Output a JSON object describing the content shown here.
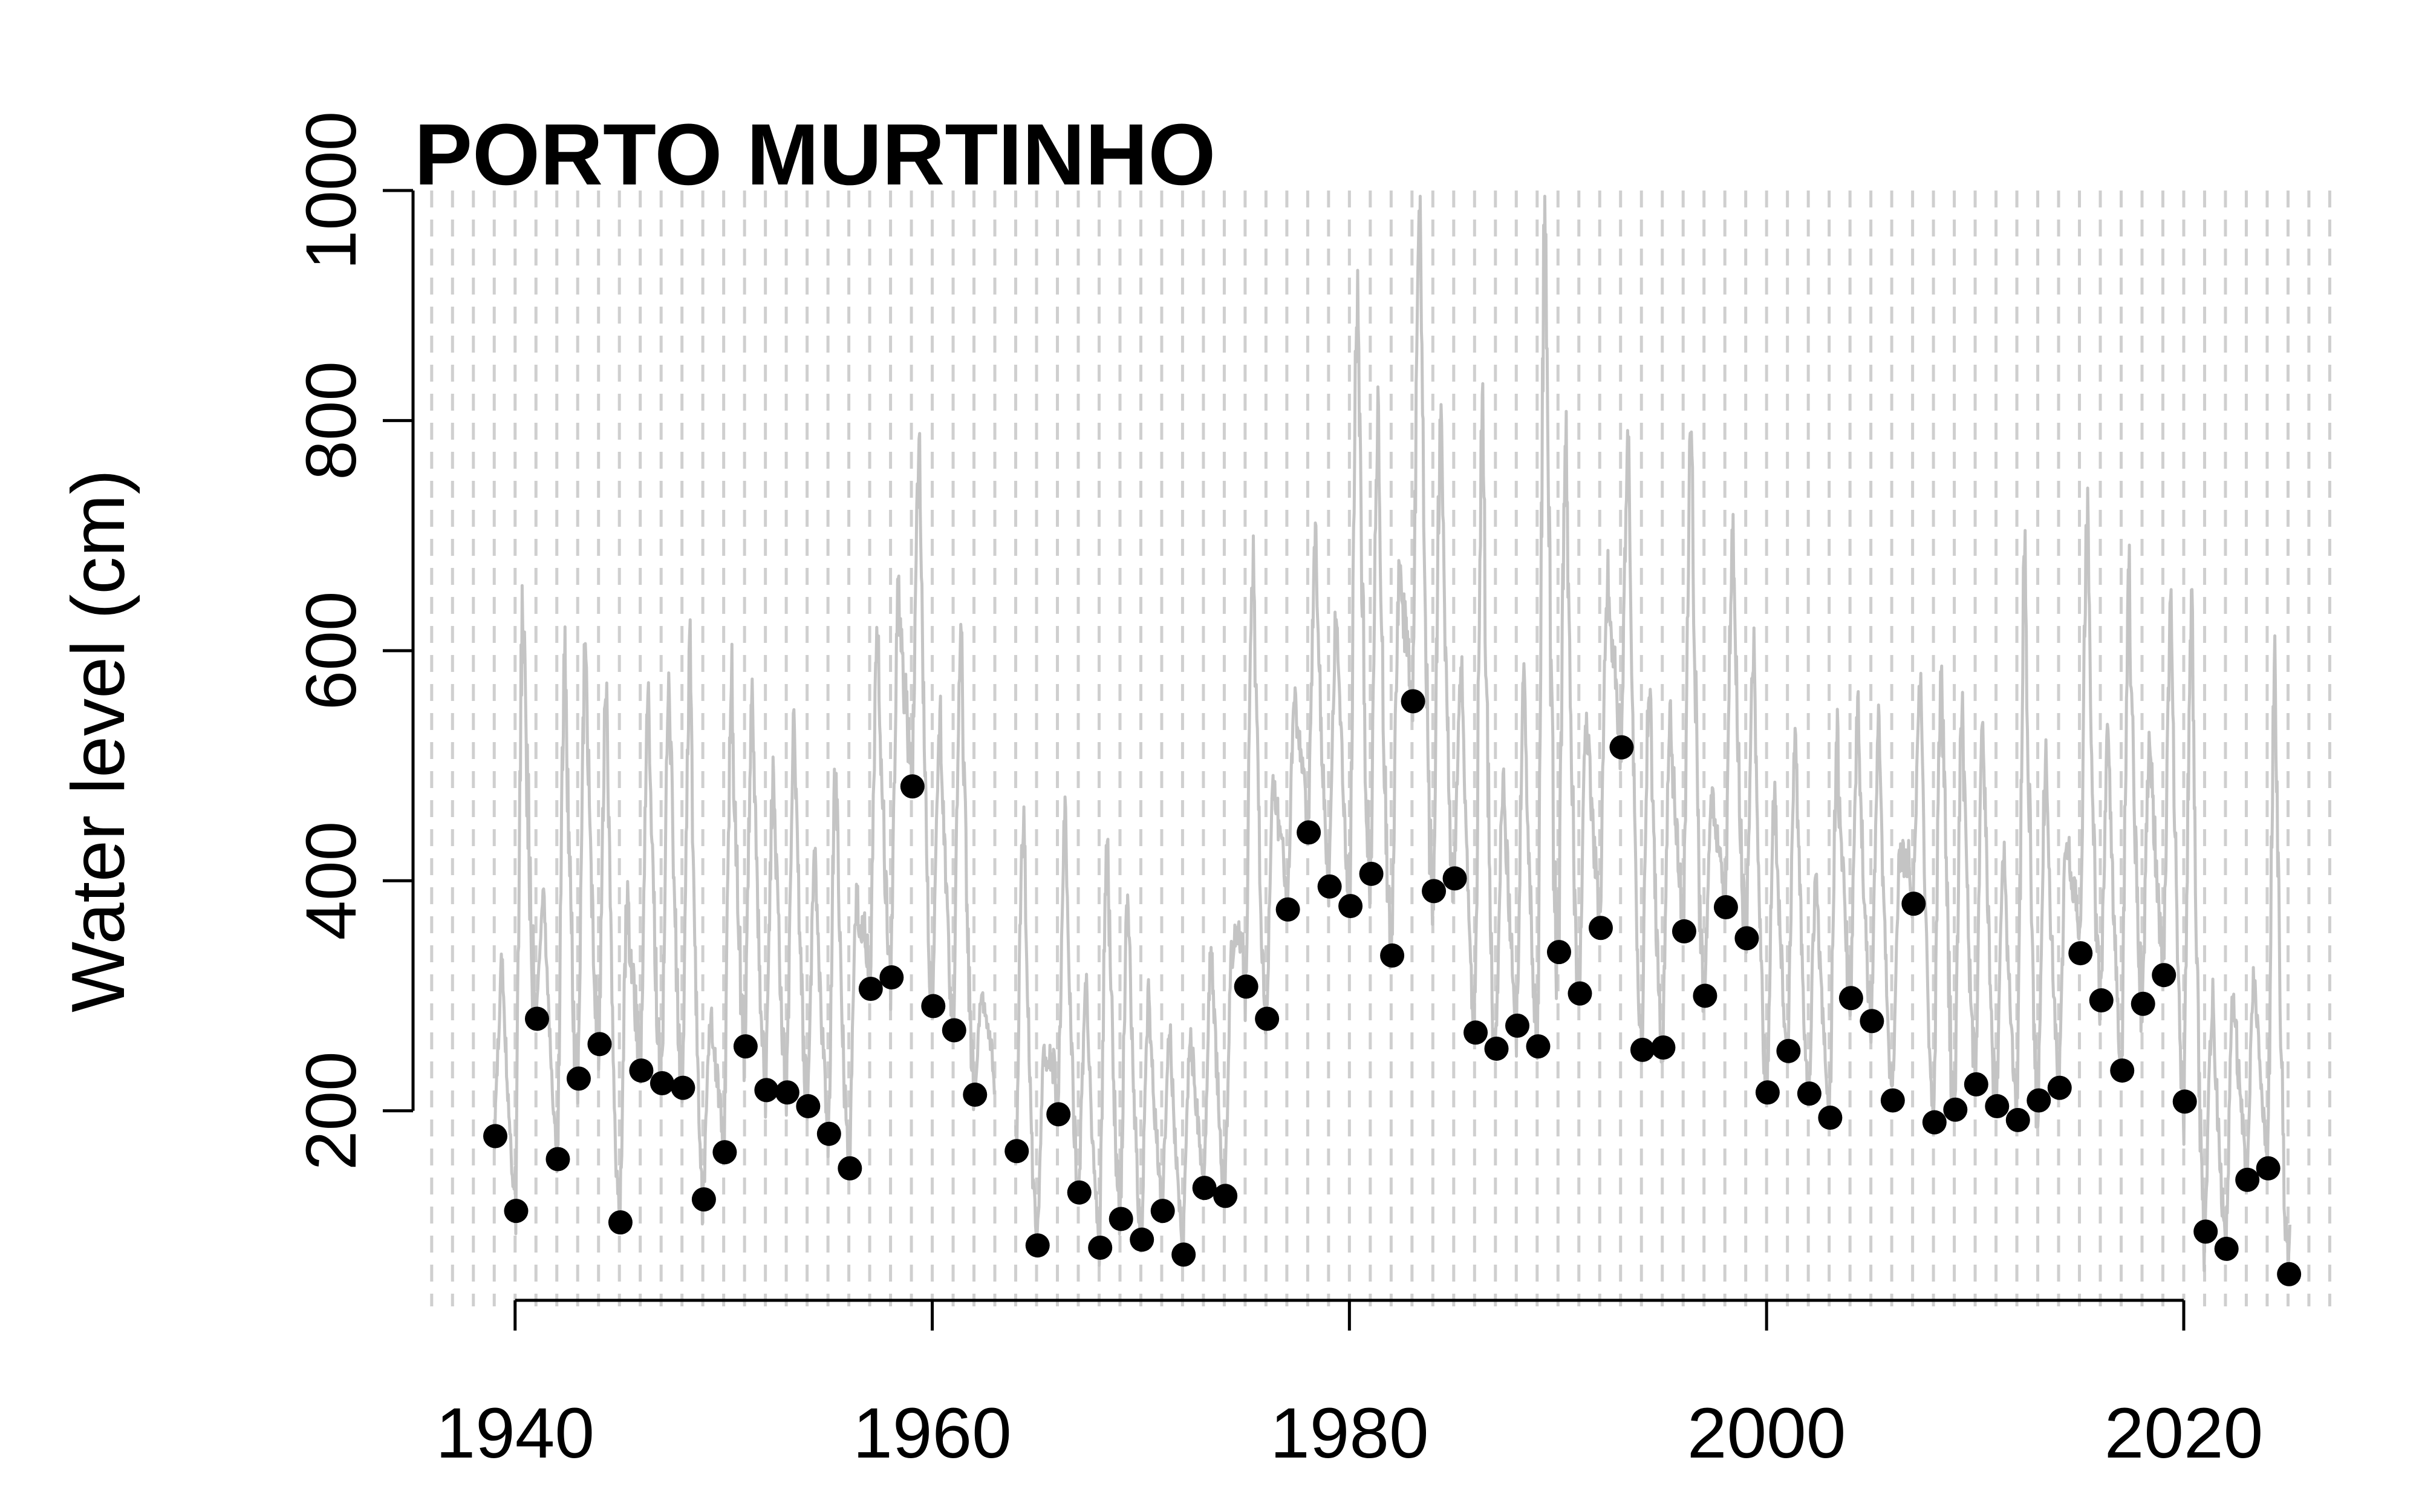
{
  "chart_data": {
    "type": "scatter",
    "title": "PORTO MURTINHO",
    "ylabel": "Water level (cm)",
    "xlabel": "",
    "xlim": [
      1935.6,
      2027.8
    ],
    "ylim": [
      30,
      1000
    ],
    "xticks": [
      1940,
      1960,
      1980,
      2000,
      2020
    ],
    "xtick_labels": [
      "1940",
      "1960",
      "1980",
      "2000",
      "2020"
    ],
    "yticks": [
      200,
      400,
      600,
      800,
      1000
    ],
    "ytick_labels": [
      "200",
      "400",
      "600",
      "800",
      "1000"
    ],
    "grid": "vertical dashed line at every year",
    "series": [
      {
        "style": "line",
        "color": "#c4c4c4",
        "description_color": "light gray continuous daily water level",
        "annual_peaks": [
          [
            1939,
            330
          ],
          [
            1940,
            645
          ],
          [
            1941,
            390
          ],
          [
            1942,
            600
          ],
          [
            1943,
            608
          ],
          [
            1944,
            575
          ],
          [
            1945,
            380
          ],
          [
            1946,
            560
          ],
          [
            1947,
            580
          ],
          [
            1948,
            595
          ],
          [
            1949,
            285
          ],
          [
            1950,
            570
          ],
          [
            1951,
            565
          ],
          [
            1952,
            490
          ],
          [
            1953,
            540
          ],
          [
            1954,
            420
          ],
          [
            1955,
            500
          ],
          [
            1956,
            380
          ],
          [
            1957,
            615
          ],
          [
            1958,
            655
          ],
          [
            1959,
            775
          ],
          [
            1960,
            545
          ],
          [
            1961,
            630
          ],
          [
            1962,
            300
          ],
          [
            1964,
            465
          ],
          [
            1965,
            255
          ],
          [
            1966,
            460
          ],
          [
            1967,
            305
          ],
          [
            1968,
            435
          ],
          [
            1969,
            390
          ],
          [
            1970,
            300
          ],
          [
            1971,
            275
          ],
          [
            1972,
            270
          ],
          [
            1973,
            340
          ],
          [
            1974,
            340
          ],
          [
            1975,
            685
          ],
          [
            1976,
            490
          ],
          [
            1977,
            555
          ],
          [
            1978,
            695
          ],
          [
            1979,
            640
          ],
          [
            1980,
            915
          ],
          [
            1981,
            800
          ],
          [
            1982,
            665
          ],
          [
            1983,
            975
          ],
          [
            1984,
            800
          ],
          [
            1985,
            585
          ],
          [
            1986,
            820
          ],
          [
            1987,
            495
          ],
          [
            1988,
            585
          ],
          [
            1989,
            975
          ],
          [
            1990,
            800
          ],
          [
            1991,
            545
          ],
          [
            1992,
            665
          ],
          [
            1993,
            790
          ],
          [
            1994,
            580
          ],
          [
            1995,
            540
          ],
          [
            1996,
            800
          ],
          [
            1997,
            470
          ],
          [
            1998,
            705
          ],
          [
            1999,
            600
          ],
          [
            2000,
            475
          ],
          [
            2001,
            530
          ],
          [
            2002,
            400
          ],
          [
            2003,
            520
          ],
          [
            2004,
            545
          ],
          [
            2005,
            535
          ],
          [
            2006,
            415
          ],
          [
            2007,
            575
          ],
          [
            2008,
            605
          ],
          [
            2009,
            550
          ],
          [
            2010,
            540
          ],
          [
            2011,
            420
          ],
          [
            2012,
            685
          ],
          [
            2013,
            500
          ],
          [
            2014,
            440
          ],
          [
            2015,
            715
          ],
          [
            2016,
            530
          ],
          [
            2017,
            660
          ],
          [
            2018,
            530
          ],
          [
            2019,
            630
          ],
          [
            2020,
            655
          ],
          [
            2021,
            300
          ],
          [
            2022,
            310
          ],
          [
            2023,
            320
          ],
          [
            2024,
            590
          ],
          [
            2025,
            220
          ]
        ]
      },
      {
        "style": "points",
        "color": "#000000",
        "points": [
          [
            1939,
            178
          ],
          [
            1940,
            113
          ],
          [
            1941,
            280
          ],
          [
            1942,
            158
          ],
          [
            1943,
            228
          ],
          [
            1944,
            258
          ],
          [
            1945,
            103
          ],
          [
            1946,
            235
          ],
          [
            1947,
            224
          ],
          [
            1948,
            220
          ],
          [
            1949,
            123
          ],
          [
            1950,
            164
          ],
          [
            1951,
            256
          ],
          [
            1952,
            218
          ],
          [
            1953,
            216
          ],
          [
            1954,
            204
          ],
          [
            1955,
            180
          ],
          [
            1956,
            150
          ],
          [
            1957,
            306
          ],
          [
            1958,
            316
          ],
          [
            1959,
            482
          ],
          [
            1960,
            291
          ],
          [
            1961,
            270
          ],
          [
            1962,
            214
          ],
          [
            1964,
            165
          ],
          [
            1965,
            83
          ],
          [
            1966,
            197
          ],
          [
            1967,
            129
          ],
          [
            1968,
            81
          ],
          [
            1969,
            106
          ],
          [
            1970,
            88
          ],
          [
            1971,
            113
          ],
          [
            1972,
            75
          ],
          [
            1973,
            133
          ],
          [
            1974,
            126
          ],
          [
            1975,
            308
          ],
          [
            1976,
            280
          ],
          [
            1977,
            375
          ],
          [
            1978,
            442
          ],
          [
            1979,
            395
          ],
          [
            1980,
            378
          ],
          [
            1981,
            406
          ],
          [
            1982,
            335
          ],
          [
            1983,
            556
          ],
          [
            1984,
            391
          ],
          [
            1985,
            402
          ],
          [
            1986,
            268
          ],
          [
            1987,
            254
          ],
          [
            1988,
            274
          ],
          [
            1989,
            256
          ],
          [
            1990,
            338
          ],
          [
            1991,
            302
          ],
          [
            1992,
            359
          ],
          [
            1993,
            516
          ],
          [
            1994,
            253
          ],
          [
            1995,
            255
          ],
          [
            1996,
            356
          ],
          [
            1997,
            300
          ],
          [
            1998,
            377
          ],
          [
            1999,
            350
          ],
          [
            2000,
            216
          ],
          [
            2001,
            252
          ],
          [
            2002,
            215
          ],
          [
            2003,
            194
          ],
          [
            2004,
            298
          ],
          [
            2005,
            278
          ],
          [
            2006,
            209
          ],
          [
            2007,
            380
          ],
          [
            2008,
            190
          ],
          [
            2009,
            201
          ],
          [
            2010,
            223
          ],
          [
            2011,
            204
          ],
          [
            2012,
            192
          ],
          [
            2013,
            209
          ],
          [
            2014,
            220
          ],
          [
            2015,
            337
          ],
          [
            2016,
            296
          ],
          [
            2017,
            235
          ],
          [
            2018,
            293
          ],
          [
            2019,
            318
          ],
          [
            2020,
            208
          ],
          [
            2021,
            95
          ],
          [
            2022,
            80
          ],
          [
            2023,
            140
          ],
          [
            2024,
            150
          ],
          [
            2025,
            58
          ]
        ]
      }
    ]
  }
}
